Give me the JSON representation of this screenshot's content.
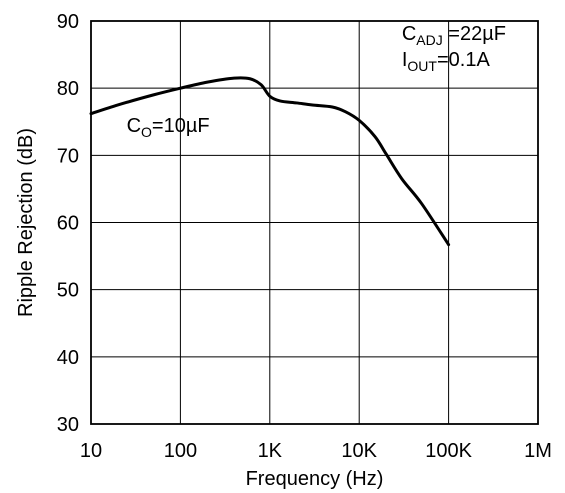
{
  "chart_data": {
    "type": "line",
    "xlabel": "Frequency (Hz)",
    "ylabel": "Ripple Rejection (dB)",
    "x_scale": "log",
    "xlim": [
      10,
      1000000
    ],
    "ylim": [
      30,
      90
    ],
    "grid": true,
    "x_ticks": [
      10,
      100,
      1000,
      10000,
      100000,
      1000000
    ],
    "x_tick_labels": [
      "10",
      "100",
      "1K",
      "10K",
      "100K",
      "1M"
    ],
    "y_ticks": [
      30,
      40,
      50,
      60,
      70,
      80,
      90
    ],
    "y_tick_labels": [
      "30",
      "40",
      "50",
      "60",
      "70",
      "80",
      "90"
    ],
    "series": [
      {
        "name": "",
        "x": [
          10,
          20,
          50,
          100,
          200,
          400,
          600,
          800,
          1000,
          1300,
          2000,
          3000,
          5000,
          7000,
          10000,
          15000,
          20000,
          30000,
          50000,
          100000
        ],
        "y": [
          76.2,
          77.5,
          79.0,
          80.0,
          80.9,
          81.5,
          81.4,
          80.5,
          78.8,
          78.1,
          77.8,
          77.5,
          77.2,
          76.5,
          75.2,
          72.8,
          70.2,
          66.5,
          62.8,
          56.7
        ]
      }
    ],
    "annotations": [
      {
        "id": "co",
        "base": "C",
        "sub": "O",
        "rest": "=10µF",
        "x": 25,
        "y": 73.5
      },
      {
        "id": "cadj",
        "base": "C",
        "sub": "ADJ",
        "rest": " =22µF",
        "x": 30000,
        "y": 87.2
      },
      {
        "id": "iout",
        "base": "I",
        "sub": "OUT",
        "rest": "=0.1A",
        "x": 30000,
        "y": 83.3
      }
    ]
  }
}
